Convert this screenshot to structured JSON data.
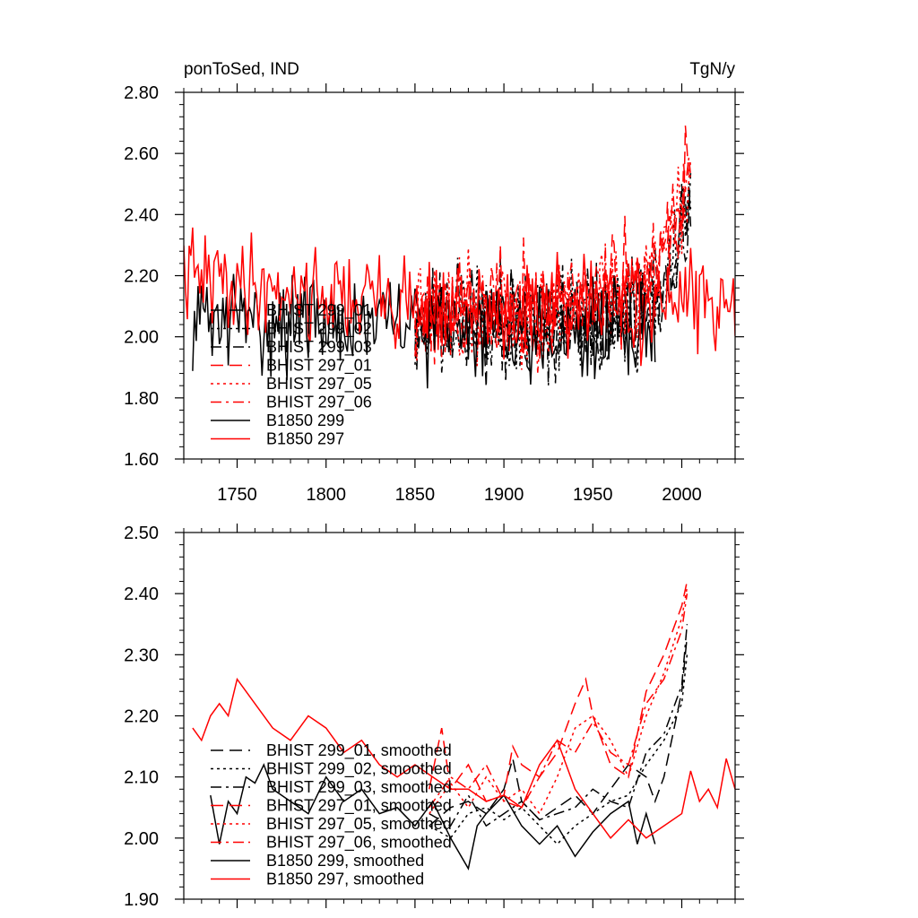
{
  "colors": {
    "black": "#000000",
    "red": "#ff0000"
  },
  "chart_data": [
    {
      "type": "line",
      "title_left": "ponToSed, IND",
      "title_right": "TgN/y",
      "xlim": [
        1720,
        2030
      ],
      "ylim": [
        1.6,
        2.8
      ],
      "yticks": [
        "1.60",
        "1.80",
        "2.00",
        "2.20",
        "2.40",
        "2.60",
        "2.80"
      ],
      "xticks": [
        "1750",
        "1800",
        "1850",
        "1900",
        "1950",
        "2000"
      ],
      "legend_position": "lower-left",
      "series": [
        {
          "name": "BHIST 299_01",
          "color": "#000000",
          "dash": "long-dash",
          "x_start": 1850,
          "x_end": 2005,
          "seed": 11,
          "base": 2.06,
          "noise": 0.15,
          "trend": [
            [
              1850,
              0
            ],
            [
              1960,
              0
            ],
            [
              1985,
              0.08
            ],
            [
              2005,
              0.35
            ]
          ]
        },
        {
          "name": "BHIST 299_02",
          "color": "#000000",
          "dash": "dot",
          "x_start": 1850,
          "x_end": 2005,
          "seed": 12,
          "base": 2.05,
          "noise": 0.15,
          "trend": [
            [
              1850,
              0
            ],
            [
              1960,
              0
            ],
            [
              1985,
              0.07
            ],
            [
              2005,
              0.33
            ]
          ]
        },
        {
          "name": "BHIST 299_03",
          "color": "#000000",
          "dash": "dash-dot",
          "x_start": 1850,
          "x_end": 2005,
          "seed": 13,
          "base": 2.05,
          "noise": 0.15,
          "trend": [
            [
              1850,
              0
            ],
            [
              1960,
              0
            ],
            [
              1985,
              0.08
            ],
            [
              2005,
              0.36
            ]
          ]
        },
        {
          "name": "BHIST 297_01",
          "color": "#ff0000",
          "dash": "long-dash",
          "x_start": 1850,
          "x_end": 2005,
          "seed": 21,
          "base": 2.08,
          "noise": 0.15,
          "trend": [
            [
              1850,
              0
            ],
            [
              1930,
              0.02
            ],
            [
              1980,
              0.1
            ],
            [
              2005,
              0.45
            ]
          ]
        },
        {
          "name": "BHIST 297_05",
          "color": "#ff0000",
          "dash": "dot",
          "x_start": 1850,
          "x_end": 2005,
          "seed": 22,
          "base": 2.07,
          "noise": 0.15,
          "trend": [
            [
              1850,
              0
            ],
            [
              1930,
              0.02
            ],
            [
              1980,
              0.1
            ],
            [
              2005,
              0.42
            ]
          ]
        },
        {
          "name": "BHIST 297_06",
          "color": "#ff0000",
          "dash": "dash-dot",
          "x_start": 1850,
          "x_end": 2005,
          "seed": 23,
          "base": 2.08,
          "noise": 0.15,
          "trend": [
            [
              1850,
              0
            ],
            [
              1930,
              0.02
            ],
            [
              1980,
              0.1
            ],
            [
              2005,
              0.44
            ]
          ]
        },
        {
          "name": "B1850 299",
          "color": "#000000",
          "dash": "solid",
          "x_start": 1725,
          "x_end": 1985,
          "seed": 31,
          "base": 2.02,
          "noise": 0.14,
          "trend": [
            [
              1725,
              0.04
            ],
            [
              1985,
              0
            ]
          ]
        },
        {
          "name": "B1850 297",
          "color": "#ff0000",
          "dash": "solid",
          "x_start": 1720,
          "x_end": 2030,
          "seed": 41,
          "base": 2.12,
          "noise": 0.14,
          "trend": [
            [
              1720,
              0.08
            ],
            [
              1800,
              0.02
            ],
            [
              1900,
              -0.04
            ],
            [
              2030,
              0
            ]
          ]
        }
      ]
    },
    {
      "type": "line",
      "xlim": [
        1720,
        2030
      ],
      "ylim": [
        1.9,
        2.5
      ],
      "yticks": [
        "1.90",
        "2.00",
        "2.10",
        "2.20",
        "2.30",
        "2.40",
        "2.50"
      ],
      "legend_position": "lower-left",
      "series": [
        {
          "name": "BHIST 299_01, smoothed",
          "color": "#000000",
          "dash": "long-dash",
          "points": [
            [
              1858,
              2.02
            ],
            [
              1870,
              2.05
            ],
            [
              1880,
              2.06
            ],
            [
              1890,
              2.04
            ],
            [
              1900,
              2.08
            ],
            [
              1905,
              2.13
            ],
            [
              1910,
              2.06
            ],
            [
              1920,
              2.03
            ],
            [
              1930,
              2.05
            ],
            [
              1940,
              2.07
            ],
            [
              1950,
              2.04
            ],
            [
              1960,
              2.08
            ],
            [
              1970,
              2.12
            ],
            [
              1980,
              2.1
            ],
            [
              1985,
              2.06
            ],
            [
              1990,
              2.1
            ],
            [
              1995,
              2.17
            ],
            [
              2000,
              2.24
            ],
            [
              2003,
              2.33
            ]
          ]
        },
        {
          "name": "BHIST 299_02, smoothed",
          "color": "#000000",
          "dash": "dot",
          "points": [
            [
              1858,
              2.02
            ],
            [
              1870,
              2.0
            ],
            [
              1880,
              2.04
            ],
            [
              1890,
              2.05
            ],
            [
              1900,
              2.03
            ],
            [
              1910,
              2.05
            ],
            [
              1920,
              2.02
            ],
            [
              1930,
              1.99
            ],
            [
              1940,
              2.02
            ],
            [
              1950,
              2.04
            ],
            [
              1960,
              2.06
            ],
            [
              1970,
              2.07
            ],
            [
              1980,
              2.12
            ],
            [
              1990,
              2.16
            ],
            [
              2000,
              2.22
            ],
            [
              2003,
              2.3
            ]
          ]
        },
        {
          "name": "BHIST 299_03, smoothed",
          "color": "#000000",
          "dash": "dash-dot",
          "points": [
            [
              1858,
              2.04
            ],
            [
              1870,
              2.02
            ],
            [
              1880,
              2.07
            ],
            [
              1890,
              2.02
            ],
            [
              1900,
              2.04
            ],
            [
              1910,
              2.06
            ],
            [
              1920,
              2.03
            ],
            [
              1930,
              2.04
            ],
            [
              1940,
              2.05
            ],
            [
              1950,
              2.08
            ],
            [
              1960,
              2.06
            ],
            [
              1970,
              2.05
            ],
            [
              1980,
              2.14
            ],
            [
              1990,
              2.17
            ],
            [
              2000,
              2.25
            ],
            [
              2003,
              2.35
            ]
          ]
        },
        {
          "name": "BHIST 297_01, smoothed",
          "color": "#ff0000",
          "dash": "long-dash",
          "points": [
            [
              1858,
              2.08
            ],
            [
              1865,
              2.18
            ],
            [
              1870,
              2.08
            ],
            [
              1880,
              2.12
            ],
            [
              1890,
              2.06
            ],
            [
              1900,
              2.07
            ],
            [
              1905,
              2.15
            ],
            [
              1910,
              2.12
            ],
            [
              1920,
              2.1
            ],
            [
              1930,
              2.14
            ],
            [
              1940,
              2.22
            ],
            [
              1946,
              2.26
            ],
            [
              1950,
              2.2
            ],
            [
              1955,
              2.16
            ],
            [
              1960,
              2.12
            ],
            [
              1970,
              2.1
            ],
            [
              1980,
              2.24
            ],
            [
              1990,
              2.3
            ],
            [
              2000,
              2.38
            ],
            [
              2003,
              2.42
            ]
          ]
        },
        {
          "name": "BHIST 297_05, smoothed",
          "color": "#ff0000",
          "dash": "dot",
          "points": [
            [
              1858,
              2.04
            ],
            [
              1870,
              2.09
            ],
            [
              1880,
              2.05
            ],
            [
              1890,
              2.1
            ],
            [
              1900,
              2.06
            ],
            [
              1910,
              2.08
            ],
            [
              1920,
              2.04
            ],
            [
              1930,
              2.1
            ],
            [
              1940,
              2.18
            ],
            [
              1950,
              2.2
            ],
            [
              1960,
              2.16
            ],
            [
              1970,
              2.1
            ],
            [
              1980,
              2.2
            ],
            [
              1990,
              2.27
            ],
            [
              2000,
              2.36
            ],
            [
              2003,
              2.41
            ]
          ]
        },
        {
          "name": "BHIST 297_06, smoothed",
          "color": "#ff0000",
          "dash": "dash-dot",
          "points": [
            [
              1858,
              2.05
            ],
            [
              1870,
              2.1
            ],
            [
              1880,
              2.08
            ],
            [
              1890,
              2.12
            ],
            [
              1900,
              2.06
            ],
            [
              1910,
              2.05
            ],
            [
              1920,
              2.1
            ],
            [
              1930,
              2.16
            ],
            [
              1940,
              2.14
            ],
            [
              1950,
              2.19
            ],
            [
              1960,
              2.14
            ],
            [
              1970,
              2.12
            ],
            [
              1980,
              2.22
            ],
            [
              1990,
              2.26
            ],
            [
              2000,
              2.34
            ],
            [
              2003,
              2.4
            ]
          ]
        },
        {
          "name": "B1850 299, smoothed",
          "color": "#000000",
          "dash": "solid",
          "points": [
            [
              1735,
              2.07
            ],
            [
              1740,
              1.99
            ],
            [
              1745,
              2.06
            ],
            [
              1750,
              2.04
            ],
            [
              1755,
              2.1
            ],
            [
              1760,
              2.09
            ],
            [
              1765,
              2.12
            ],
            [
              1770,
              2.08
            ],
            [
              1780,
              2.06
            ],
            [
              1790,
              2.04
            ],
            [
              1800,
              2.1
            ],
            [
              1810,
              2.06
            ],
            [
              1820,
              2.08
            ],
            [
              1830,
              2.04
            ],
            [
              1840,
              2.05
            ],
            [
              1850,
              2.02
            ],
            [
              1860,
              2.06
            ],
            [
              1870,
              2.0
            ],
            [
              1880,
              1.95
            ],
            [
              1885,
              2.02
            ],
            [
              1890,
              2.04
            ],
            [
              1900,
              2.07
            ],
            [
              1910,
              2.02
            ],
            [
              1920,
              1.99
            ],
            [
              1930,
              2.02
            ],
            [
              1940,
              1.97
            ],
            [
              1950,
              2.01
            ],
            [
              1960,
              2.04
            ],
            [
              1970,
              2.06
            ],
            [
              1975,
              1.99
            ],
            [
              1980,
              2.04
            ],
            [
              1985,
              1.99
            ]
          ]
        },
        {
          "name": "B1850 297, smoothed",
          "color": "#ff0000",
          "dash": "solid",
          "points": [
            [
              1725,
              2.18
            ],
            [
              1730,
              2.16
            ],
            [
              1735,
              2.2
            ],
            [
              1740,
              2.22
            ],
            [
              1745,
              2.2
            ],
            [
              1750,
              2.26
            ],
            [
              1755,
              2.24
            ],
            [
              1760,
              2.22
            ],
            [
              1770,
              2.18
            ],
            [
              1780,
              2.16
            ],
            [
              1790,
              2.2
            ],
            [
              1800,
              2.18
            ],
            [
              1810,
              2.14
            ],
            [
              1820,
              2.16
            ],
            [
              1830,
              2.12
            ],
            [
              1840,
              2.1
            ],
            [
              1850,
              2.12
            ],
            [
              1860,
              2.1
            ],
            [
              1870,
              2.08
            ],
            [
              1880,
              2.08
            ],
            [
              1890,
              2.06
            ],
            [
              1900,
              2.07
            ],
            [
              1910,
              2.05
            ],
            [
              1920,
              2.12
            ],
            [
              1930,
              2.16
            ],
            [
              1940,
              2.08
            ],
            [
              1950,
              2.04
            ],
            [
              1960,
              2.0
            ],
            [
              1970,
              2.03
            ],
            [
              1980,
              2.0
            ],
            [
              1990,
              2.02
            ],
            [
              2000,
              2.04
            ],
            [
              2005,
              2.11
            ],
            [
              2010,
              2.06
            ],
            [
              2015,
              2.08
            ],
            [
              2020,
              2.05
            ],
            [
              2025,
              2.13
            ],
            [
              2030,
              2.08
            ]
          ]
        }
      ]
    }
  ]
}
